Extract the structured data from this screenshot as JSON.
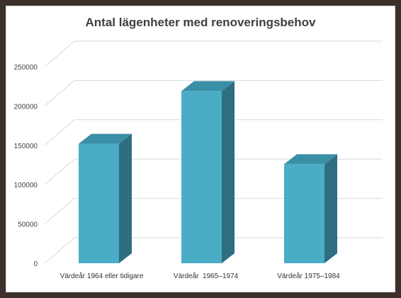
{
  "chart_data": {
    "type": "bar",
    "title": "Antal lägenheter med renoveringsbehov",
    "categories": [
      "Värdeår 1964 eller tidigare",
      "Värdeår  1965–1974",
      "Värdeår 1975–1984"
    ],
    "series": [
      {
        "values": [
          152000,
          219000,
          126000
        ]
      }
    ],
    "xlabel": "",
    "ylabel": "",
    "ylim": [
      0,
      250000
    ],
    "yticks": [
      0,
      50000,
      100000,
      150000,
      200000,
      250000
    ],
    "grid": true,
    "legend": "none",
    "colors": {
      "bar_front": "#4bacc6",
      "bar_side": "#2e6e80",
      "bar_top": "#3a8fa6",
      "grid": "#d9d9d9"
    },
    "style": "3d-column"
  }
}
